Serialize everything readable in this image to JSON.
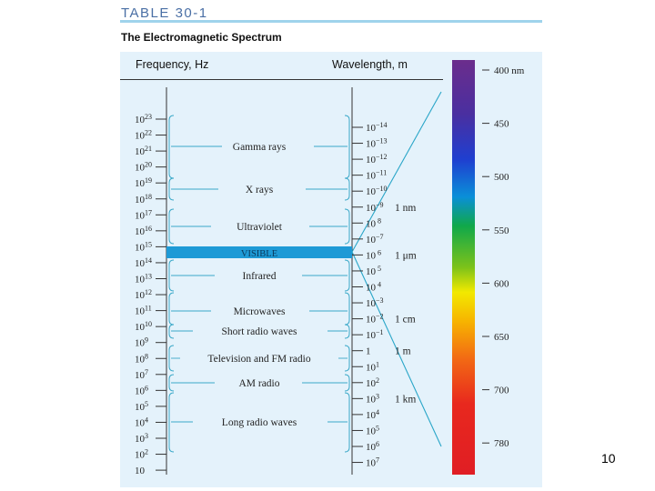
{
  "table_title": "TABLE 30-1",
  "subtitle": "The Electromagnetic Spectrum",
  "freq_header": "Frequency, Hz",
  "wave_header": "Wavelength, m",
  "freq_labels": [
    {
      "base": "10",
      "exp": "23"
    },
    {
      "base": "10",
      "exp": "22"
    },
    {
      "base": "10",
      "exp": "21"
    },
    {
      "base": "10",
      "exp": "20"
    },
    {
      "base": "10",
      "exp": "19"
    },
    {
      "base": "10",
      "exp": "18"
    },
    {
      "base": "10",
      "exp": "17"
    },
    {
      "base": "10",
      "exp": "16"
    },
    {
      "base": "10",
      "exp": "15"
    },
    {
      "base": "10",
      "exp": "14"
    },
    {
      "base": "10",
      "exp": "13"
    },
    {
      "base": "10",
      "exp": "12"
    },
    {
      "base": "10",
      "exp": "11"
    },
    {
      "base": "10",
      "exp": "10"
    },
    {
      "base": "10",
      "exp": "9"
    },
    {
      "base": "10",
      "exp": "8"
    },
    {
      "base": "10",
      "exp": "7"
    },
    {
      "base": "10",
      "exp": "6"
    },
    {
      "base": "10",
      "exp": "5"
    },
    {
      "base": "10",
      "exp": "4"
    },
    {
      "base": "10",
      "exp": "3"
    },
    {
      "base": "10",
      "exp": "2"
    },
    {
      "base": "10",
      "exp": ""
    }
  ],
  "wave_labels": [
    {
      "base": "10",
      "exp": "−14"
    },
    {
      "base": "10",
      "exp": "−13"
    },
    {
      "base": "10",
      "exp": "−12"
    },
    {
      "base": "10",
      "exp": "−11"
    },
    {
      "base": "10",
      "exp": "−10"
    },
    {
      "base": "10",
      "exp": "−9"
    },
    {
      "base": "10",
      "exp": " 8"
    },
    {
      "base": "10",
      "exp": "−7"
    },
    {
      "base": "10",
      "exp": " 6"
    },
    {
      "base": "10",
      "exp": " 5"
    },
    {
      "base": "10",
      "exp": " 4"
    },
    {
      "base": "10",
      "exp": "−3"
    },
    {
      "base": "10",
      "exp": "−2"
    },
    {
      "base": "10",
      "exp": "−1"
    },
    {
      "base": "1",
      "exp": ""
    },
    {
      "base": "10",
      "exp": "1"
    },
    {
      "base": "10",
      "exp": "2"
    },
    {
      "base": "10",
      "exp": "3"
    },
    {
      "base": "10",
      "exp": "4"
    },
    {
      "base": "10",
      "exp": "5"
    },
    {
      "base": "10",
      "exp": "6"
    },
    {
      "base": "10",
      "exp": "7"
    }
  ],
  "length_markers": [
    "1 nm",
    "1 μm",
    "1 cm",
    "1 m",
    "1 km"
  ],
  "regions": [
    "Gamma rays",
    "X rays",
    "Ultraviolet",
    "VISIBLE",
    "Infrared",
    "Microwaves",
    "Short radio waves",
    "Television and FM radio",
    "AM radio",
    "Long radio waves"
  ],
  "visible_ticks": [
    "400 nm",
    "450",
    "500",
    "550",
    "600",
    "650",
    "700",
    "780"
  ],
  "colors": {
    "visible_band": "#1e9ad6",
    "panel": "#e4f2fb",
    "bracket": "#3aa8c8",
    "accent": "#4a6fa5"
  },
  "page_number": "10"
}
